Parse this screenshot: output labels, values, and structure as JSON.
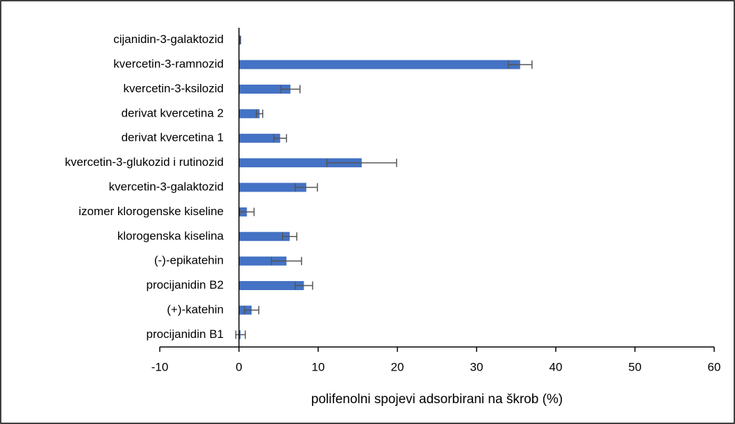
{
  "chart_data": {
    "type": "bar",
    "orientation": "horizontal",
    "categories": [
      "cijanidin-3-galaktozid",
      "kvercetin-3-ramnozid",
      "kvercetin-3-ksilozid",
      "derivat kvercetina 2",
      "derivat kvercetina 1",
      "kvercetin-3-glukozid i rutinozid",
      "kvercetin-3-galaktozid",
      "izomer klorogenske kiseline",
      "klorogenska kiselina",
      "(-)-epikatehin",
      "procijanidin B2",
      "(+)-katehin",
      "procijanidin B1"
    ],
    "values": [
      0.2,
      35.5,
      6.5,
      2.6,
      5.2,
      15.5,
      8.5,
      1.0,
      6.4,
      6.0,
      8.2,
      1.6,
      0.2
    ],
    "errors": [
      0,
      1.5,
      1.2,
      0.4,
      0.8,
      4.4,
      1.4,
      0.9,
      0.9,
      1.9,
      1.1,
      0.9,
      0.6
    ],
    "color": "#4472c4",
    "xlabel": "polifenolni spojevi adsorbirani na škrob (%)",
    "xlim": [
      -10,
      60
    ],
    "xticks": [
      -10,
      0,
      10,
      20,
      30,
      40,
      50,
      60
    ]
  }
}
